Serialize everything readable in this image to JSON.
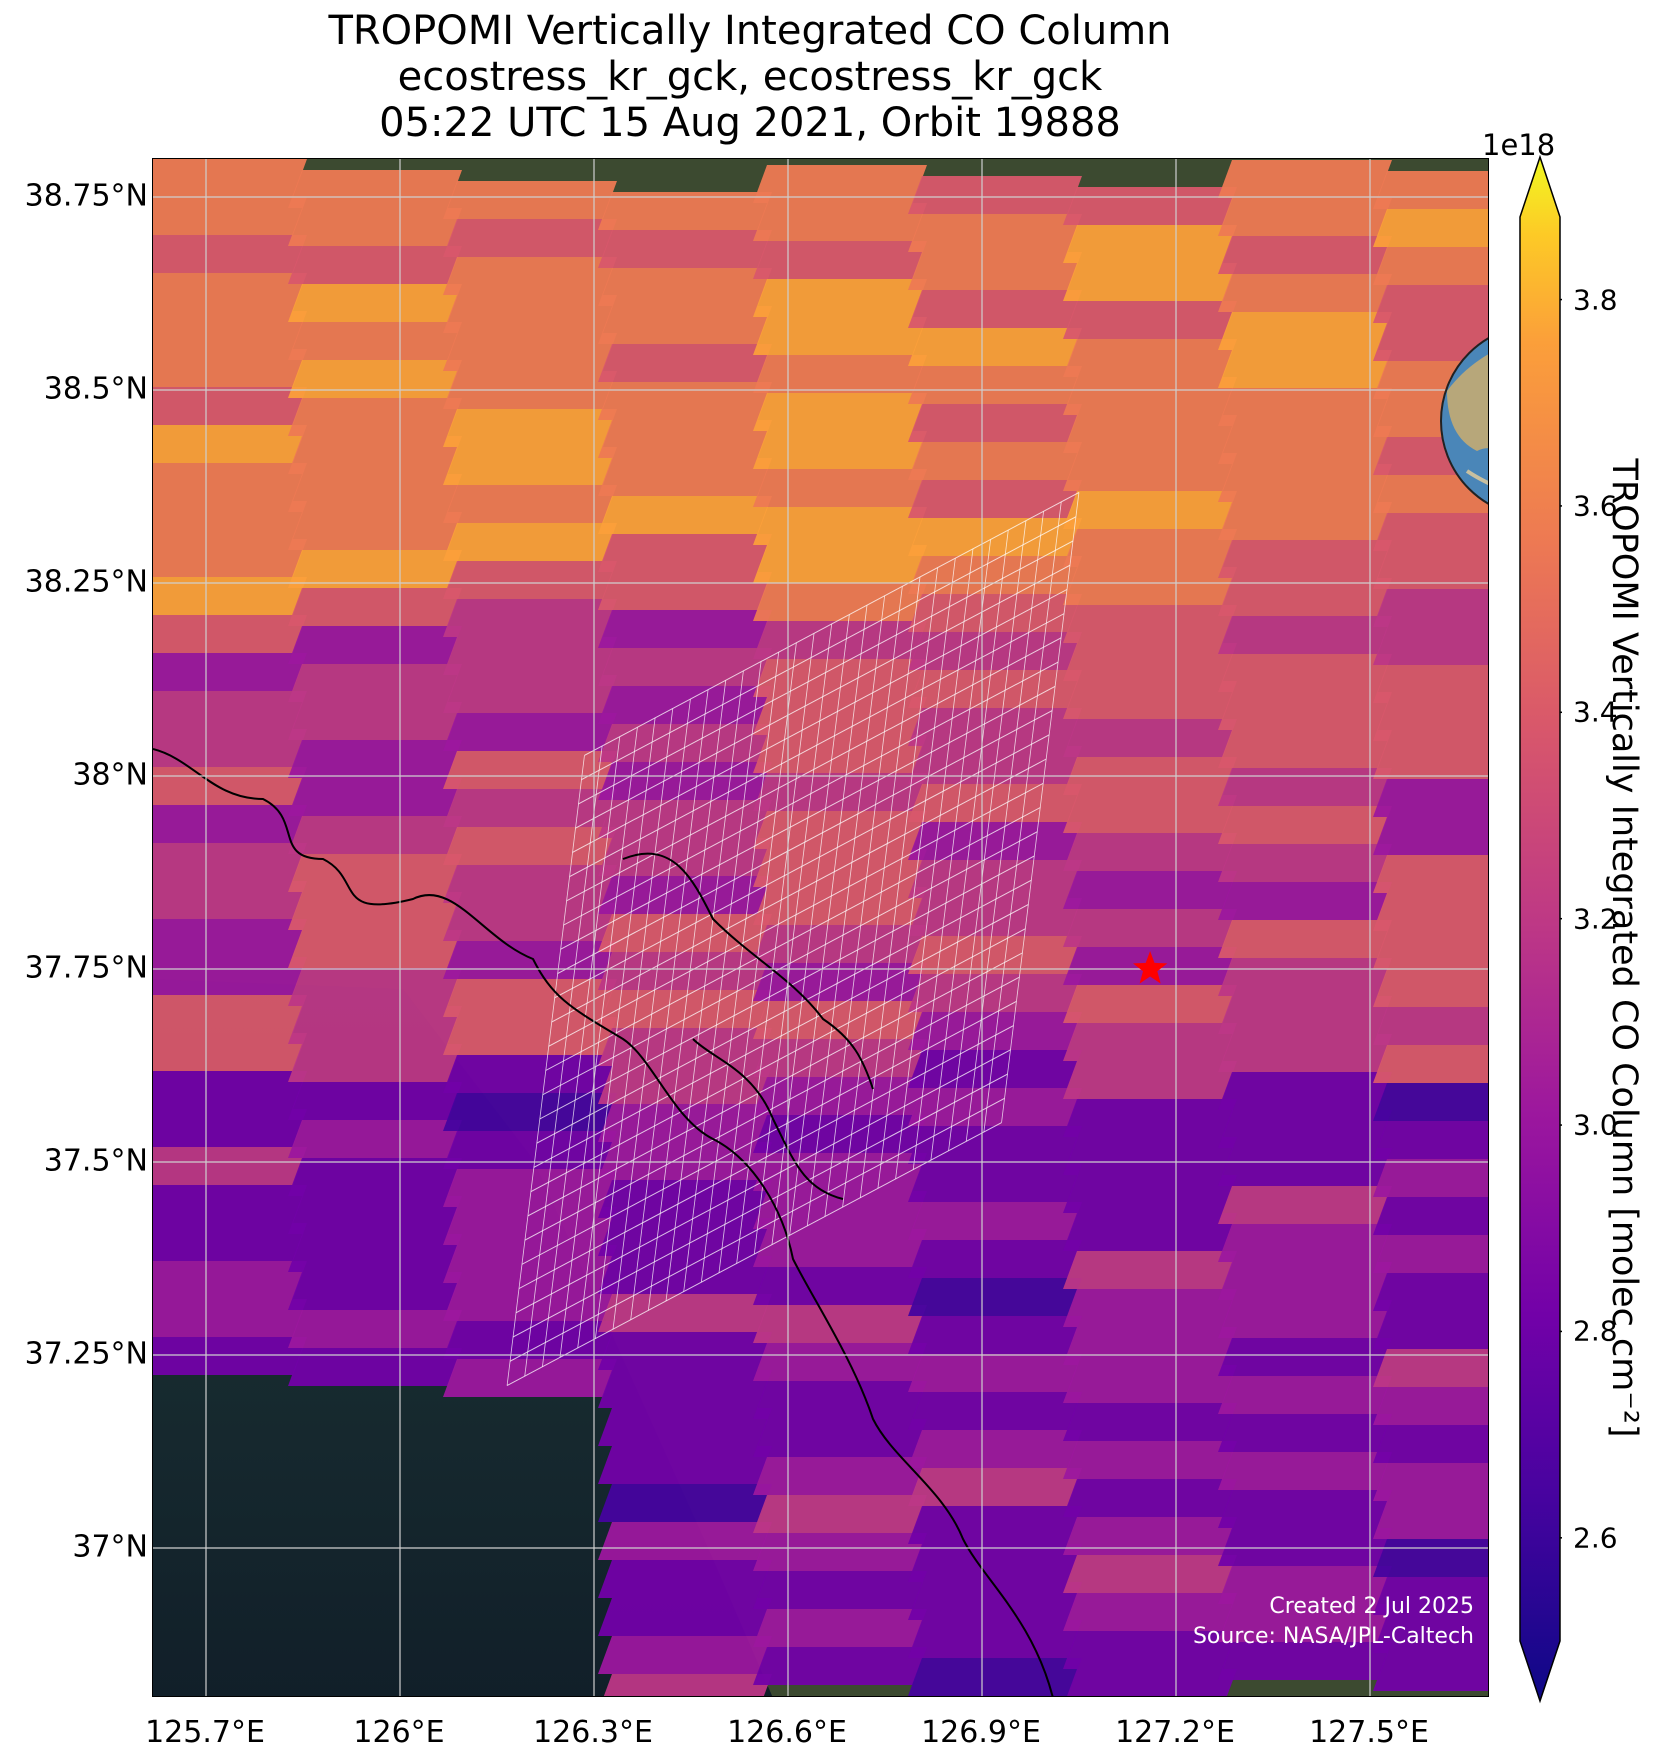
{
  "title": {
    "line1": "TROPOMI Vertically Integrated CO Column",
    "line2": "ecostress_kr_gck, ecostress_kr_gck",
    "line3": "05:22 UTC 15 Aug 2021, Orbit 19888"
  },
  "map": {
    "lat_ticks": [
      {
        "value": 38.75,
        "label": "38.75°N"
      },
      {
        "value": 38.5,
        "label": "38.5°N"
      },
      {
        "value": 38.25,
        "label": "38.25°N"
      },
      {
        "value": 38.0,
        "label": "38°N"
      },
      {
        "value": 37.75,
        "label": "37.75°N"
      },
      {
        "value": 37.5,
        "label": "37.5°N"
      },
      {
        "value": 37.25,
        "label": "37.25°N"
      },
      {
        "value": 37.0,
        "label": "37°N"
      }
    ],
    "lon_ticks": [
      {
        "value": 125.7,
        "label": "125.7°E"
      },
      {
        "value": 126.0,
        "label": "126°E"
      },
      {
        "value": 126.3,
        "label": "126.3°E"
      },
      {
        "value": 126.6,
        "label": "126.6°E"
      },
      {
        "value": 126.9,
        "label": "126.9°E"
      },
      {
        "value": 127.2,
        "label": "127.2°E"
      },
      {
        "value": 127.5,
        "label": "127.5°E"
      }
    ],
    "target_marker": {
      "lon": 127.16,
      "lat": 37.75,
      "color": "#ff0000",
      "icon": "star-icon"
    },
    "colormap": "plasma",
    "credit_line1": "Created 2 Jul 2025",
    "credit_line2": "Source: NASA/JPL-Caltech"
  },
  "colorbar": {
    "exponent": "1e18",
    "label": "TROPOMI Vertically Integrated CO Column [molec cm⁻²]",
    "vmin": 2.5,
    "vmax": 3.88,
    "ticks": [
      "3.8",
      "3.6",
      "3.4",
      "3.2",
      "3.0",
      "2.8",
      "2.6"
    ],
    "extend": "both"
  },
  "inset": {
    "icon": "globe-icon",
    "marker_color": "#ff0000"
  }
}
